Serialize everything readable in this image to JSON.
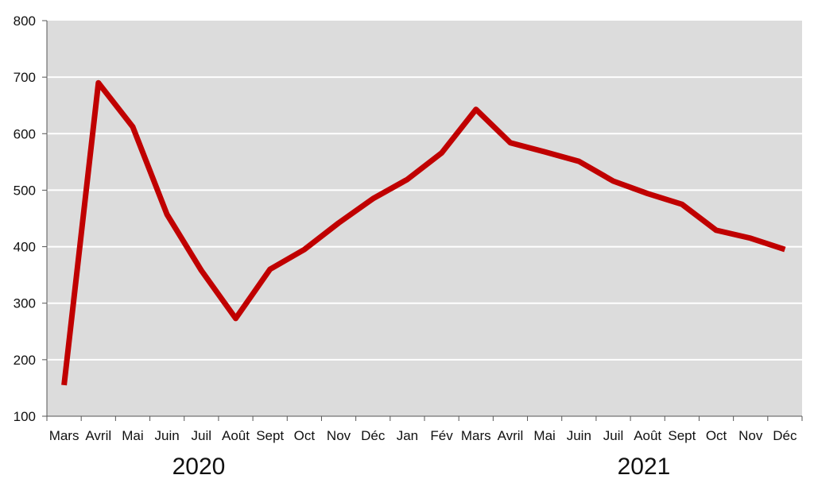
{
  "chart_data": {
    "type": "line",
    "title": "",
    "xlabel": "",
    "ylabel": "",
    "ylim": [
      100,
      800
    ],
    "yticks": [
      100,
      200,
      300,
      400,
      500,
      600,
      700,
      800
    ],
    "grid": true,
    "legend": "none",
    "categories": [
      "Mars",
      "Avril",
      "Mai",
      "Juin",
      "Juil",
      "Août",
      "Sept",
      "Oct",
      "Nov",
      "Déc",
      "Jan",
      "Fév",
      "Mars",
      "Avril",
      "Mai",
      "Juin",
      "Juil",
      "Août",
      "Sept",
      "Oct",
      "Nov",
      "Déc"
    ],
    "year_labels": [
      "2020",
      "2021"
    ],
    "series": [
      {
        "values": [
          155,
          690,
          612,
          457,
          358,
          273,
          360,
          395,
          442,
          485,
          519,
          566,
          643,
          584,
          568,
          551,
          516,
          494,
          475,
          429,
          415,
          395
        ]
      }
    ]
  },
  "colors": {
    "plot_background": "#dcdcdc",
    "gridline": "#ffffff",
    "line": "#c00000",
    "axis": "#555555"
  }
}
